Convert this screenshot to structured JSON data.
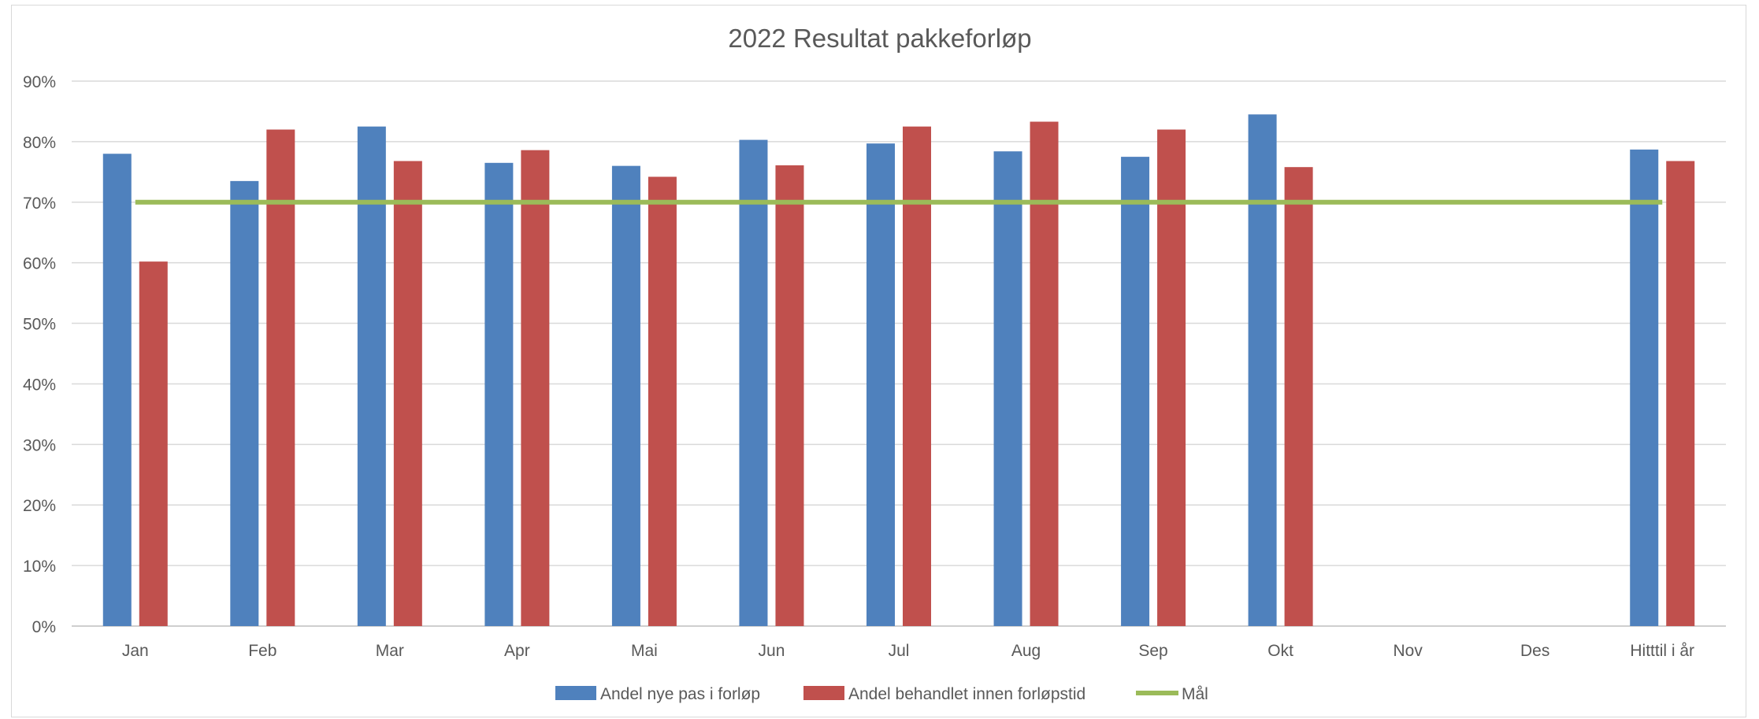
{
  "chart_data": {
    "type": "bar",
    "title": "2022 Resultat pakkeforløp",
    "xlabel": "",
    "ylabel": "",
    "ylim": [
      0,
      90
    ],
    "yticks": [
      "0%",
      "10%",
      "20%",
      "30%",
      "40%",
      "50%",
      "60%",
      "70%",
      "80%",
      "90%"
    ],
    "categories": [
      "Jan",
      "Feb",
      "Mar",
      "Apr",
      "Mai",
      "Jun",
      "Jul",
      "Aug",
      "Sep",
      "Okt",
      "Nov",
      "Des",
      "Hitttil i år"
    ],
    "series": [
      {
        "name": "Andel nye pas i forløp",
        "color": "#4f81bd",
        "kind": "bar",
        "values": [
          78,
          73.5,
          82.5,
          76.5,
          76,
          80.3,
          79.7,
          78.4,
          77.5,
          84.5,
          null,
          null,
          78.7
        ]
      },
      {
        "name": "Andel behandlet innen forløpstid",
        "color": "#c0504d",
        "kind": "bar",
        "values": [
          60.2,
          82,
          76.8,
          78.6,
          74.2,
          76.1,
          82.5,
          83.3,
          82,
          75.8,
          null,
          null,
          76.8
        ]
      },
      {
        "name": "Mål",
        "color": "#9bbb59",
        "kind": "line",
        "values": [
          70,
          70,
          70,
          70,
          70,
          70,
          70,
          70,
          70,
          70,
          70,
          70,
          70
        ]
      }
    ],
    "grid": true,
    "legend": "bottom"
  }
}
